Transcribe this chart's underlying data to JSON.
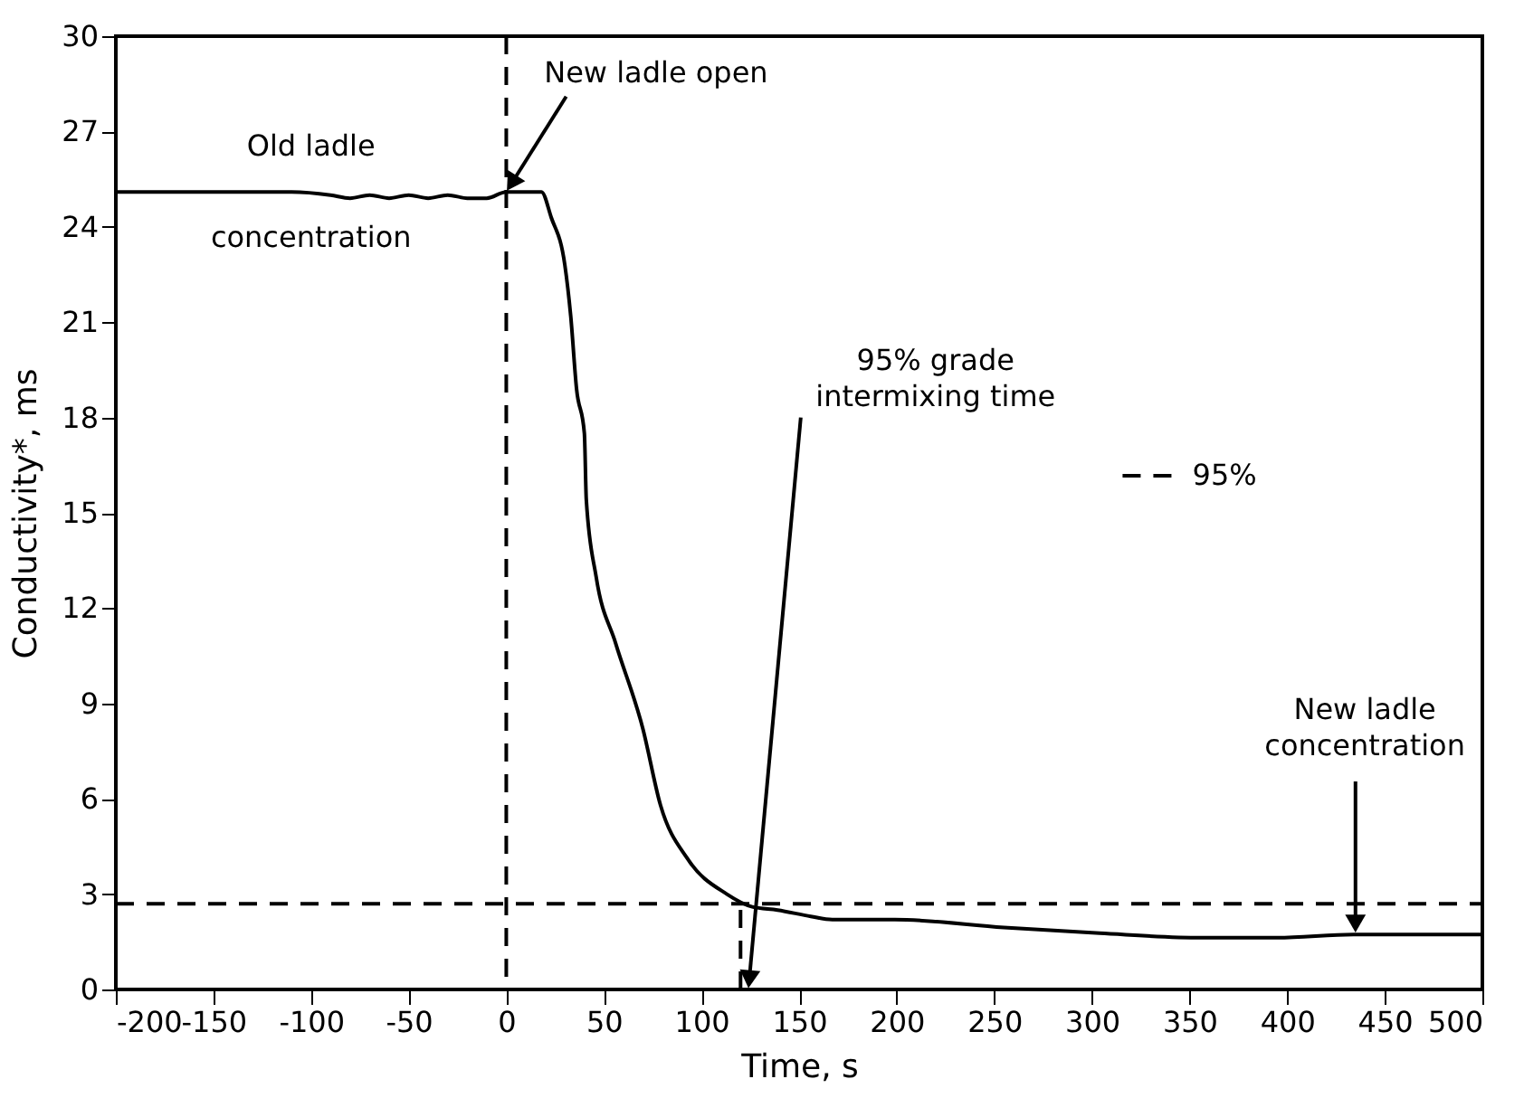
{
  "chart_data": {
    "type": "line",
    "xlabel": "Time, s",
    "ylabel": "Conductivity*, ms",
    "xlim": [
      -200,
      500
    ],
    "ylim": [
      0,
      30
    ],
    "xticks": [
      -200,
      -150,
      -100,
      -50,
      0,
      50,
      100,
      150,
      200,
      250,
      300,
      350,
      400,
      450,
      500
    ],
    "yticks": [
      0,
      3,
      6,
      9,
      12,
      15,
      18,
      21,
      24,
      27,
      30
    ],
    "grid": false,
    "legend": "right",
    "marker": "none",
    "series": [
      {
        "color": "#000000",
        "line_style": "solid",
        "x": [
          -200,
          -150,
          -110,
          -90,
          -80,
          -70,
          -60,
          -50,
          -40,
          -30,
          -20,
          -10,
          0,
          10,
          18,
          23,
          30,
          33,
          36,
          40,
          41,
          46,
          56,
          70,
          79,
          93,
          113,
          126,
          139,
          156,
          167,
          199,
          255,
          304,
          356,
          395,
          434,
          500
        ],
        "values": [
          25.1,
          25.1,
          25.1,
          25.0,
          24.9,
          25.0,
          24.9,
          25.0,
          24.9,
          25.0,
          24.9,
          24.9,
          25.1,
          25.1,
          25.1,
          24.3,
          22.8,
          21.2,
          18.9,
          17.5,
          15.4,
          13.0,
          10.9,
          8.2,
          5.8,
          4.1,
          3.0,
          2.6,
          2.5,
          2.3,
          2.2,
          2.2,
          1.95,
          1.77,
          1.63,
          1.63,
          1.73,
          1.73
        ]
      },
      {
        "name": "95%",
        "color": "#000000",
        "line_style": "dashed",
        "x": [
          -200,
          500
        ],
        "values": [
          2.7,
          2.7
        ]
      },
      {
        "color": "#000000",
        "line_style": "dashed",
        "x": [
          120,
          120
        ],
        "values": [
          0,
          2.7
        ]
      }
    ],
    "ref_lines": [
      {
        "axis": "x",
        "value": 0,
        "color": "#000000",
        "line_style": "dashed"
      }
    ],
    "annotations": [
      {
        "text": "Old ladle",
        "x": -100,
        "y": 25.1
      },
      {
        "text": "concentration",
        "x": -100,
        "y": 25.1
      },
      {
        "text": "New ladle open",
        "x": 0,
        "y": 25.1
      },
      {
        "text": "95% grade\nintermixing time",
        "x": 124,
        "y": 0
      },
      {
        "text": "New ladle\nconcentration",
        "x": 435,
        "y": 1.75
      }
    ]
  }
}
